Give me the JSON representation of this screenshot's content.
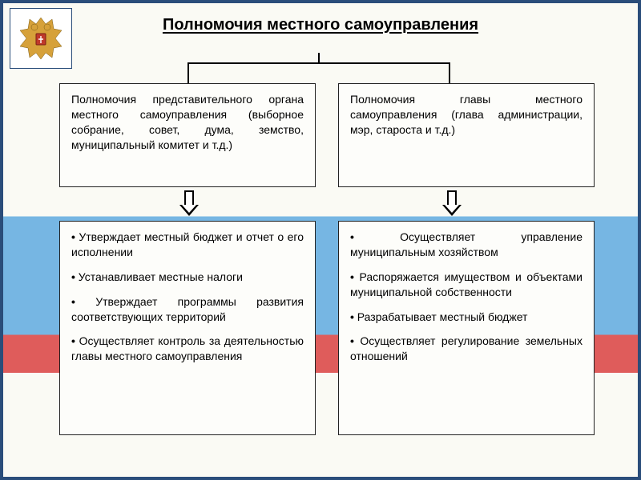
{
  "frame_border_color": "#2a4d7a",
  "title": {
    "text": "Полномочия местного самоуправления",
    "fontsize": 20,
    "color": "#000000"
  },
  "body_fontsize": 14,
  "emblem": {
    "name": "russian-coat-of-arms",
    "primary_color": "#d6a13a",
    "shield_color": "#c0392b"
  },
  "background_bands": {
    "top": "#fafaf5",
    "blue": "#5aa8e0",
    "red": "#d93a3a",
    "bottom": "#fafaf5"
  },
  "boxes": {
    "left_top": "Полномочия представительного органа местного самоуправления (выборное собрание, совет, дума, земство, муниципальный комитет и т.д.)",
    "right_top": "Полномочия главы местного самоуправления (глава администрации, мэр, староста и т.д.)",
    "left_bot": [
      "Утверждает местный бюджет и отчет о его исполнении",
      "Устанавливает местные налоги",
      "Утверждает программы развития соответствующих территорий",
      "Осуществляет контроль за деятельностью главы местного самоуправления"
    ],
    "right_bot": [
      "Осуществляет управление муниципальным хозяйством",
      "Распоряжается имуществом и объектами муниципальной собственности",
      "Разрабатывает местный бюджет",
      "Осуществляет регулирование земельных отношений"
    ]
  }
}
